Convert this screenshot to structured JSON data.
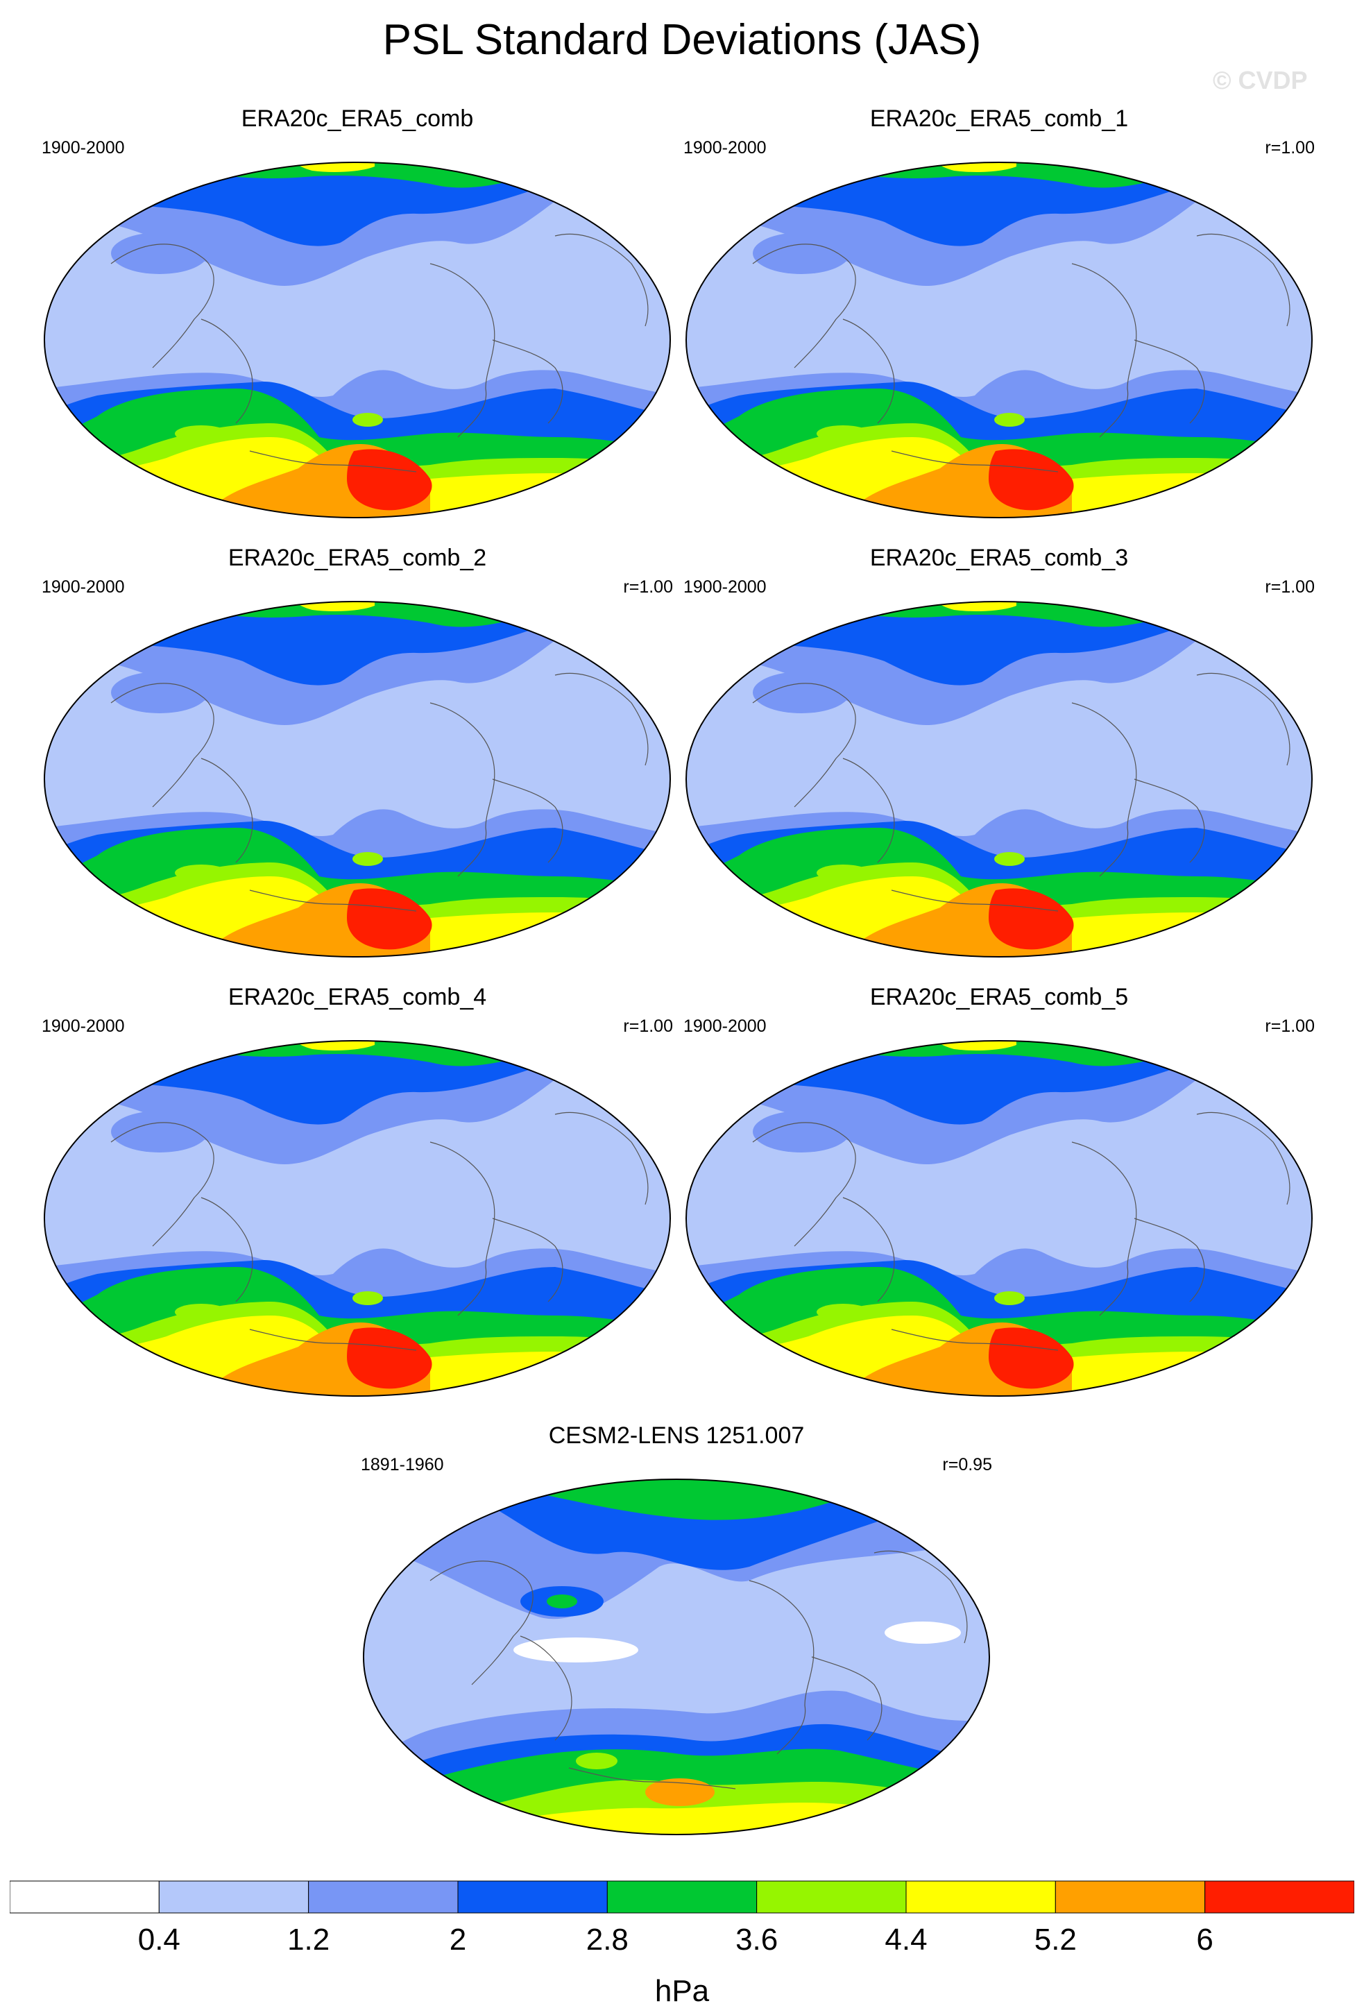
{
  "title": "PSL Standard Deviations (JAS)",
  "watermark": "© CVDP",
  "panels": [
    {
      "title": "ERA20c_ERA5_comb",
      "period": "1900-2000",
      "corr": ""
    },
    {
      "title": "ERA20c_ERA5_comb_1",
      "period": "1900-2000",
      "corr": "r=1.00"
    },
    {
      "title": "ERA20c_ERA5_comb_2",
      "period": "1900-2000",
      "corr": "r=1.00"
    },
    {
      "title": "ERA20c_ERA5_comb_3",
      "period": "1900-2000",
      "corr": "r=1.00"
    },
    {
      "title": "ERA20c_ERA5_comb_4",
      "period": "1900-2000",
      "corr": "r=1.00"
    },
    {
      "title": "ERA20c_ERA5_comb_5",
      "period": "1900-2000",
      "corr": "r=1.00"
    },
    {
      "title": "CESM2-LENS 1251.007",
      "period": "1891-1960",
      "corr": "r=0.95"
    }
  ],
  "colorbar": {
    "unit": "hPa",
    "labels": [
      "0.4",
      "1.2",
      "2",
      "2.8",
      "3.6",
      "4.4",
      "5.2",
      "6"
    ],
    "colors": [
      "#ffffff",
      "#b4c8fa",
      "#7896f5",
      "#0a5af5",
      "#00c832",
      "#96f500",
      "#ffff00",
      "#ffa000",
      "#ff1e00"
    ]
  }
}
